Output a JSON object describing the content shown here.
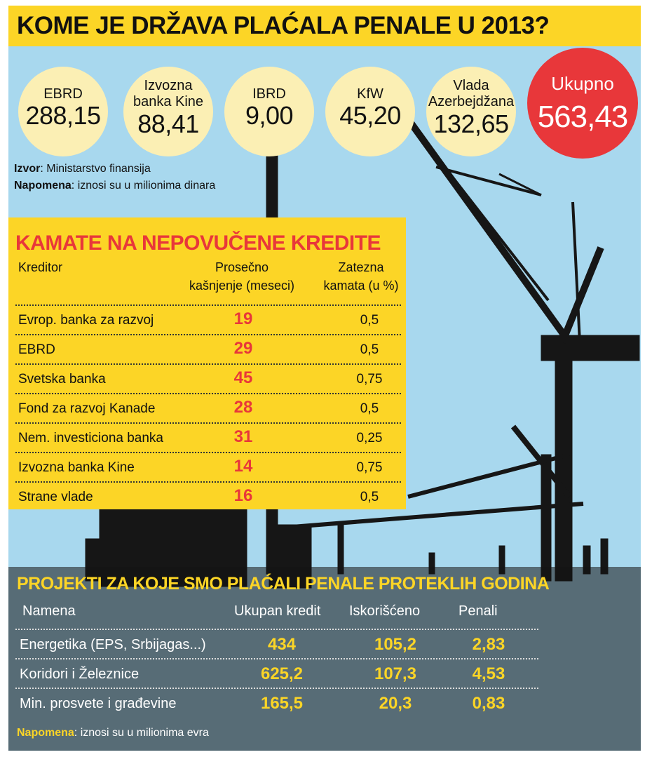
{
  "title": "KOME JE DRŽAVA PLAĆALA PENALE U 2013?",
  "penalties": [
    {
      "label_lines": [
        "EBRD"
      ],
      "value": "288,15"
    },
    {
      "label_lines": [
        "Izvozna",
        "banka Kine"
      ],
      "value": "88,41"
    },
    {
      "label_lines": [
        "IBRD"
      ],
      "value": "9,00"
    },
    {
      "label_lines": [
        "KfW"
      ],
      "value": "45,20"
    },
    {
      "label_lines": [
        "Vlada",
        "Azerbejdžana"
      ],
      "value": "132,65"
    }
  ],
  "total": {
    "label": "Ukupno",
    "value": "563,43"
  },
  "source": {
    "label": "Izvor",
    "text": ": Ministarstvo finansija"
  },
  "note": {
    "label": "Napomena",
    "text": ": iznosi su u milionima dinara"
  },
  "kamate": {
    "title": "KAMATE NA NEPOVUČENE KREDITE",
    "col_creditor": "Kreditor",
    "col_delay_1": "Prosečno",
    "col_delay_2": "kašnjenje (meseci)",
    "col_rate_1": "Zatezna",
    "col_rate_2": "kamata (u %)",
    "rows": [
      {
        "creditor": "Evrop. banka za razvoj",
        "delay": "19",
        "rate": "0,5"
      },
      {
        "creditor": "EBRD",
        "delay": "29",
        "rate": "0,5"
      },
      {
        "creditor": "Svetska banka",
        "delay": "45",
        "rate": "0,75"
      },
      {
        "creditor": "Fond za razvoj Kanade",
        "delay": "28",
        "rate": "0,5"
      },
      {
        "creditor": "Nem. investiciona banka",
        "delay": "31",
        "rate": "0,25"
      },
      {
        "creditor": "Izvozna banka Kine",
        "delay": "14",
        "rate": "0,75"
      },
      {
        "creditor": "Strane vlade",
        "delay": "16",
        "rate": "0,5"
      }
    ]
  },
  "projekti": {
    "title": "PROJEKTI ZA KOJE SMO PLAĆALI PENALE PROTEKLIH GODINA",
    "col_purpose": "Namena",
    "col_total": "Ukupan kredit",
    "col_used": "Iskorišćeno",
    "col_penalty": "Penali",
    "rows": [
      {
        "purpose": "Energetika (EPS, Srbijagas...)",
        "total": "434",
        "used": "105,2",
        "penalty": "2,83"
      },
      {
        "purpose": "Koridori i Železnice",
        "total": "625,2",
        "used": "107,3",
        "penalty": "4,53"
      },
      {
        "purpose": "Min. prosvete i građevine",
        "total": "165,5",
        "used": "20,3",
        "penalty": "0,83"
      }
    ],
    "note_label": "Napomena",
    "note_text": ": iznosi su u milionima evra"
  },
  "colors": {
    "yellow": "#fcd526",
    "red": "#e8373a",
    "sky": "#a8d8ee",
    "bubble": "#fbefb4"
  }
}
